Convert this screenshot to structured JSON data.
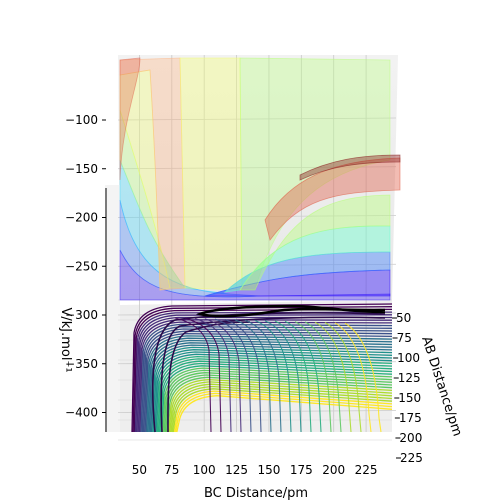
{
  "chart_data": {
    "type": "surface-contour-3d",
    "title": "",
    "xlabel": "BC Distance/pm",
    "ylabel": "AB Distance/pm",
    "zlabel": "V/kJ.mol⁻¹",
    "x_ticks": [
      "50",
      "75",
      "100",
      "125",
      "150",
      "175",
      "200",
      "225"
    ],
    "y_ticks": [
      "50",
      "75",
      "100",
      "125",
      "150",
      "175",
      "200",
      "225"
    ],
    "z_ticks": [
      "−100",
      "−150",
      "−200",
      "−250",
      "−300",
      "−350",
      "−400"
    ],
    "xlim": [
      35,
      245
    ],
    "ylim": [
      35,
      230
    ],
    "zlim": [
      -420,
      -20
    ],
    "grid": true,
    "colormap": "viridis",
    "surface_band_colors": [
      "#2a0aff",
      "#3a7bff",
      "#39d8ff",
      "#66ffcc",
      "#b8ff7a",
      "#f4ff6a",
      "#ffb07a",
      "#e0604a",
      "#8b2020"
    ],
    "trajectory_color": "#000000",
    "contour_levels": 40
  }
}
